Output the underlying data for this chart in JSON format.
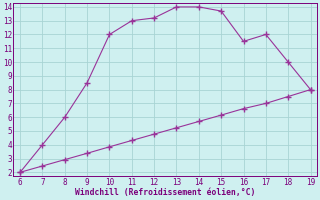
{
  "line1_x": [
    6,
    7,
    8,
    9,
    10,
    11,
    12,
    13,
    14,
    15,
    16,
    17,
    18,
    19
  ],
  "line1_y": [
    2,
    4,
    6,
    8.5,
    12,
    13,
    13.2,
    14,
    14,
    13.7,
    11.5,
    12,
    10,
    8
  ],
  "line2_x": [
    6,
    7,
    8,
    9,
    10,
    11,
    12,
    13,
    14,
    15,
    16,
    17,
    18,
    19
  ],
  "line2_y": [
    2,
    2.46,
    2.92,
    3.38,
    3.85,
    4.31,
    4.77,
    5.23,
    5.69,
    6.15,
    6.62,
    7.0,
    7.5,
    8
  ],
  "line_color": "#993399",
  "marker": "P",
  "marker_size": 2.5,
  "line_width": 0.8,
  "xlabel": "Windchill (Refroidissement éolien,°C)",
  "xlim": [
    6,
    19
  ],
  "ylim": [
    2,
    14
  ],
  "xticks": [
    6,
    7,
    8,
    9,
    10,
    11,
    12,
    13,
    14,
    15,
    16,
    17,
    18,
    19
  ],
  "yticks": [
    2,
    3,
    4,
    5,
    6,
    7,
    8,
    9,
    10,
    11,
    12,
    13,
    14
  ],
  "background_color": "#cff0f0",
  "grid_color": "#a8d4d4",
  "tick_label_color": "#7b007b",
  "xlabel_color": "#7b007b",
  "spine_color": "#7b007b"
}
